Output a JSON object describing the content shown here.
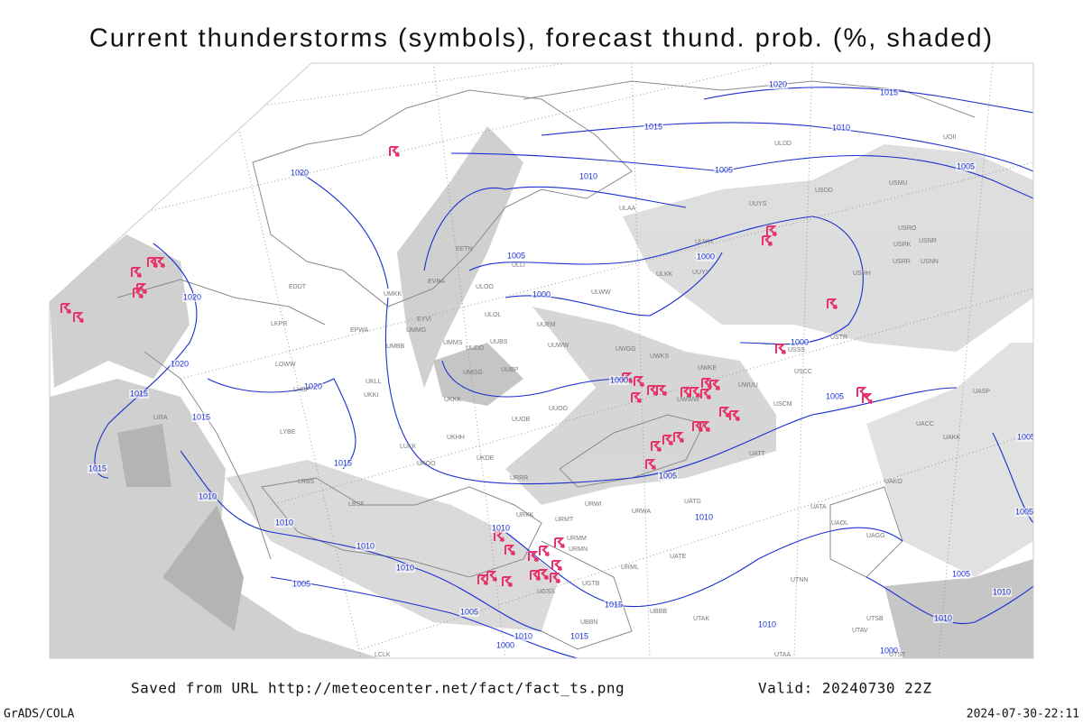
{
  "title": "Current thunderstorms (symbols), forecast thund. prob. (%, shaded)",
  "footer": {
    "saved": "Saved from URL http://meteocenter.net/fact/fact_ts.png",
    "valid": "Valid: 20240730 22Z",
    "credit": "GrADS/COLA",
    "timestamp": "2024-07-30-22:11"
  },
  "isobar_labels": [
    "1020",
    "1015",
    "1015",
    "1010",
    "1005",
    "1005",
    "1010",
    "1020",
    "1000",
    "1005",
    "1000",
    "1000",
    "1000",
    "1005",
    "1020",
    "1020",
    "1015",
    "1015",
    "1020",
    "1015",
    "1015",
    "1010",
    "1010",
    "1010",
    "1010",
    "1010",
    "1005",
    "1005",
    "1010",
    "1000",
    "1015",
    "1015",
    "1010",
    "1010",
    "1005",
    "1005",
    "1005",
    "1010",
    "1010",
    "1000",
    "1005"
  ],
  "stations": [
    "ULDD",
    "USDD",
    "USMU",
    "UOII",
    "UUYS",
    "USRO",
    "USRK",
    "USNR",
    "USRR",
    "USNN",
    "USHH",
    "UUYH",
    "ULKK",
    "UUYY",
    "ULAA",
    "ULWW",
    "ULOO",
    "ULOL",
    "UUEM",
    "UUWW",
    "UUBS",
    "UUDD",
    "UMMS",
    "UMGG",
    "UUBP",
    "UWGG",
    "UWKS",
    "UWKE",
    "UWUU",
    "UWWW",
    "USSS",
    "USCC",
    "USCM",
    "USTR",
    "UACC",
    "UAKK",
    "UASP",
    "UATT",
    "UAOL",
    "UATA",
    "UAGG",
    "UAKO",
    "UUOB",
    "UUOO",
    "UKKK",
    "ULLI",
    "EETN",
    "EVRA",
    "UMKK",
    "UMMG",
    "UMBB",
    "EPWA",
    "LKPR",
    "LOWW",
    "LHBP",
    "UKLL",
    "UKKI",
    "LUKK",
    "UKOO",
    "UKHH",
    "UKDE",
    "URRR",
    "URWA",
    "URWI",
    "UATG",
    "URMT",
    "URKK",
    "URMM",
    "URMN",
    "UGTB",
    "UGSS",
    "UBBB",
    "UTAK",
    "LBSF",
    "LRBS",
    "LYBE",
    "LIRA",
    "LCLK",
    "UTAA",
    "UTAV",
    "UTSB",
    "UTST",
    "UBBN",
    "UTNN",
    "UATE",
    "URML",
    "EDDT",
    "EYVI"
  ]
}
